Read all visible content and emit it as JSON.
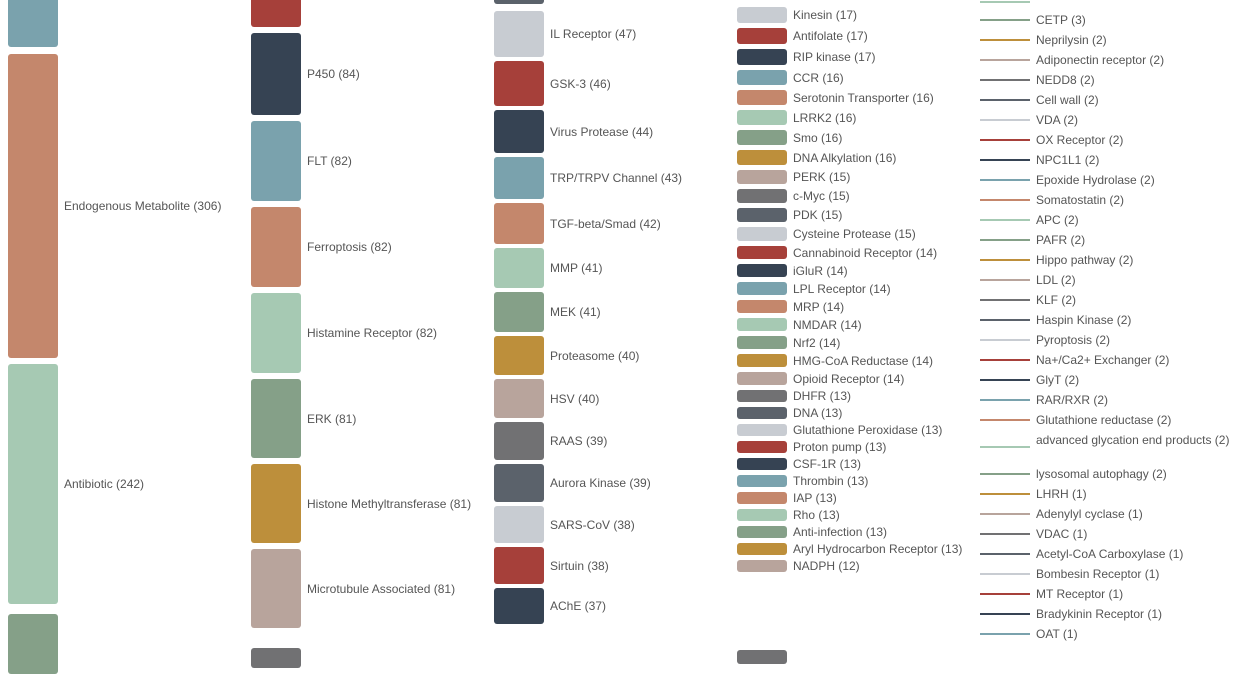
{
  "chart_data": {
    "type": "treemap-legend",
    "colors": [
      "#a6403a",
      "#364353",
      "#7aa2ad",
      "#c4876c",
      "#a6c9b3",
      "#85a088",
      "#bd8f3b",
      "#b8a49c",
      "#717173",
      "#5b626b",
      "#c8ccd2"
    ],
    "columns": [
      {
        "items": [
          {
            "label": "Endogenous Metabolite (306)",
            "name": "Endogenous Metabolite",
            "value": 306,
            "color": "#c4876c"
          },
          {
            "label": "Antibiotic (242)",
            "name": "Antibiotic",
            "value": 242,
            "color": "#a6c9b3"
          }
        ]
      },
      {
        "items": [
          {
            "label": "P450 (84)",
            "name": "P450",
            "value": 84,
            "color": "#364353"
          },
          {
            "label": "FLT (82)",
            "name": "FLT",
            "value": 82,
            "color": "#7aa2ad"
          },
          {
            "label": "Ferroptosis (82)",
            "name": "Ferroptosis",
            "value": 82,
            "color": "#c4876c"
          },
          {
            "label": "Histamine Receptor (82)",
            "name": "Histamine Receptor",
            "value": 82,
            "color": "#a6c9b3"
          },
          {
            "label": "ERK (81)",
            "name": "ERK",
            "value": 81,
            "color": "#85a088"
          },
          {
            "label": "Histone Methyltransferase (81)",
            "name": "Histone Methyltransferase",
            "value": 81,
            "color": "#bd8f3b"
          },
          {
            "label": "Microtubule Associated (81)",
            "name": "Microtubule Associated",
            "value": 81,
            "color": "#b8a49c"
          }
        ]
      },
      {
        "items": [
          {
            "label": "IL Receptor (47)",
            "name": "IL Receptor",
            "value": 47,
            "color": "#c8ccd2"
          },
          {
            "label": "GSK-3 (46)",
            "name": "GSK-3",
            "value": 46,
            "color": "#a6403a"
          },
          {
            "label": "Virus Protease (44)",
            "name": "Virus Protease",
            "value": 44,
            "color": "#364353"
          },
          {
            "label": "TRP/TRPV Channel (43)",
            "name": "TRP/TRPV Channel",
            "value": 43,
            "color": "#7aa2ad"
          },
          {
            "label": "TGF-beta/Smad (42)",
            "name": "TGF-beta/Smad",
            "value": 42,
            "color": "#c4876c"
          },
          {
            "label": "MMP (41)",
            "name": "MMP",
            "value": 41,
            "color": "#a6c9b3"
          },
          {
            "label": "MEK (41)",
            "name": "MEK",
            "value": 41,
            "color": "#85a088"
          },
          {
            "label": "Proteasome (40)",
            "name": "Proteasome",
            "value": 40,
            "color": "#bd8f3b"
          },
          {
            "label": "HSV (40)",
            "name": "HSV",
            "value": 40,
            "color": "#b8a49c"
          },
          {
            "label": "RAAS (39)",
            "name": "RAAS",
            "value": 39,
            "color": "#717173"
          },
          {
            "label": "Aurora Kinase (39)",
            "name": "Aurora Kinase",
            "value": 39,
            "color": "#5b626b"
          },
          {
            "label": "SARS-CoV (38)",
            "name": "SARS-CoV",
            "value": 38,
            "color": "#c8ccd2"
          },
          {
            "label": "Sirtuin (38)",
            "name": "Sirtuin",
            "value": 38,
            "color": "#a6403a"
          },
          {
            "label": "AChE (37)",
            "name": "AChE",
            "value": 37,
            "color": "#364353"
          }
        ]
      },
      {
        "items": [
          {
            "label": "Kinesin (17)",
            "name": "Kinesin",
            "value": 17,
            "color": "#c8ccd2"
          },
          {
            "label": "Antifolate (17)",
            "name": "Antifolate",
            "value": 17,
            "color": "#a6403a"
          },
          {
            "label": "RIP kinase (17)",
            "name": "RIP kinase",
            "value": 17,
            "color": "#364353"
          },
          {
            "label": "CCR (16)",
            "name": "CCR",
            "value": 16,
            "color": "#7aa2ad"
          },
          {
            "label": "Serotonin Transporter (16)",
            "name": "Serotonin Transporter",
            "value": 16,
            "color": "#c4876c"
          },
          {
            "label": "LRRK2 (16)",
            "name": "LRRK2",
            "value": 16,
            "color": "#a6c9b3"
          },
          {
            "label": "Smo (16)",
            "name": "Smo",
            "value": 16,
            "color": "#85a088"
          },
          {
            "label": "DNA Alkylation (16)",
            "name": "DNA Alkylation",
            "value": 16,
            "color": "#bd8f3b"
          },
          {
            "label": "PERK (15)",
            "name": "PERK",
            "value": 15,
            "color": "#b8a49c"
          },
          {
            "label": "c-Myc (15)",
            "name": "c-Myc",
            "value": 15,
            "color": "#717173"
          },
          {
            "label": "PDK (15)",
            "name": "PDK",
            "value": 15,
            "color": "#5b626b"
          },
          {
            "label": "Cysteine Protease (15)",
            "name": "Cysteine Protease",
            "value": 15,
            "color": "#c8ccd2"
          },
          {
            "label": "Cannabinoid Receptor (14)",
            "name": "Cannabinoid Receptor",
            "value": 14,
            "color": "#a6403a"
          },
          {
            "label": "iGluR (14)",
            "name": "iGluR",
            "value": 14,
            "color": "#364353"
          },
          {
            "label": "LPL Receptor (14)",
            "name": "LPL Receptor",
            "value": 14,
            "color": "#7aa2ad"
          },
          {
            "label": "MRP (14)",
            "name": "MRP",
            "value": 14,
            "color": "#c4876c"
          },
          {
            "label": "NMDAR (14)",
            "name": "NMDAR",
            "value": 14,
            "color": "#a6c9b3"
          },
          {
            "label": "Nrf2 (14)",
            "name": "Nrf2",
            "value": 14,
            "color": "#85a088"
          },
          {
            "label": "HMG-CoA Reductase (14)",
            "name": "HMG-CoA Reductase",
            "value": 14,
            "color": "#bd8f3b"
          },
          {
            "label": "Opioid Receptor (14)",
            "name": "Opioid Receptor",
            "value": 14,
            "color": "#b8a49c"
          },
          {
            "label": "DHFR (13)",
            "name": "DHFR",
            "value": 13,
            "color": "#717173"
          },
          {
            "label": "DNA (13)",
            "name": "DNA",
            "value": 13,
            "color": "#5b626b"
          },
          {
            "label": "Glutathione Peroxidase (13)",
            "name": "Glutathione Peroxidase",
            "value": 13,
            "color": "#c8ccd2"
          },
          {
            "label": "Proton pump (13)",
            "name": "Proton pump",
            "value": 13,
            "color": "#a6403a"
          },
          {
            "label": "CSF-1R (13)",
            "name": "CSF-1R",
            "value": 13,
            "color": "#364353"
          },
          {
            "label": "Thrombin (13)",
            "name": "Thrombin",
            "value": 13,
            "color": "#7aa2ad"
          },
          {
            "label": "IAP (13)",
            "name": "IAP",
            "value": 13,
            "color": "#c4876c"
          },
          {
            "label": "Rho (13)",
            "name": "Rho",
            "value": 13,
            "color": "#a6c9b3"
          },
          {
            "label": "Anti-infection (13)",
            "name": "Anti-infection",
            "value": 13,
            "color": "#85a088"
          },
          {
            "label": "Aryl Hydrocarbon Receptor (13)",
            "name": "Aryl Hydrocarbon Receptor",
            "value": 13,
            "color": "#bd8f3b"
          },
          {
            "label": "NADPH (12)",
            "name": "NADPH",
            "value": 12,
            "color": "#b8a49c"
          }
        ]
      },
      {
        "items": [
          {
            "label": "CETP (3)",
            "name": "CETP",
            "value": 3,
            "color": "#85a088"
          },
          {
            "label": "Neprilysin (2)",
            "name": "Neprilysin",
            "value": 2,
            "color": "#bd8f3b"
          },
          {
            "label": "Adiponectin receptor (2)",
            "name": "Adiponectin receptor",
            "value": 2,
            "color": "#b8a49c"
          },
          {
            "label": "NEDD8 (2)",
            "name": "NEDD8",
            "value": 2,
            "color": "#717173"
          },
          {
            "label": "Cell wall (2)",
            "name": "Cell wall",
            "value": 2,
            "color": "#5b626b"
          },
          {
            "label": "VDA (2)",
            "name": "VDA",
            "value": 2,
            "color": "#c8ccd2"
          },
          {
            "label": "OX Receptor (2)",
            "name": "OX Receptor",
            "value": 2,
            "color": "#a6403a"
          },
          {
            "label": "NPC1L1 (2)",
            "name": "NPC1L1",
            "value": 2,
            "color": "#364353"
          },
          {
            "label": "Epoxide Hydrolase (2)",
            "name": "Epoxide Hydrolase",
            "value": 2,
            "color": "#7aa2ad"
          },
          {
            "label": "Somatostatin (2)",
            "name": "Somatostatin",
            "value": 2,
            "color": "#c4876c"
          },
          {
            "label": "APC (2)",
            "name": "APC",
            "value": 2,
            "color": "#a6c9b3"
          },
          {
            "label": "PAFR (2)",
            "name": "PAFR",
            "value": 2,
            "color": "#85a088"
          },
          {
            "label": "Hippo pathway (2)",
            "name": "Hippo pathway",
            "value": 2,
            "color": "#bd8f3b"
          },
          {
            "label": "LDL (2)",
            "name": "LDL",
            "value": 2,
            "color": "#b8a49c"
          },
          {
            "label": "KLF (2)",
            "name": "KLF",
            "value": 2,
            "color": "#717173"
          },
          {
            "label": "Haspin Kinase (2)",
            "name": "Haspin Kinase",
            "value": 2,
            "color": "#5b626b"
          },
          {
            "label": "Pyroptosis (2)",
            "name": "Pyroptosis",
            "value": 2,
            "color": "#c8ccd2"
          },
          {
            "label": "Na+/Ca2+ Exchanger (2)",
            "name": "Na+/Ca2+ Exchanger",
            "value": 2,
            "color": "#a6403a"
          },
          {
            "label": "GlyT (2)",
            "name": "GlyT",
            "value": 2,
            "color": "#364353"
          },
          {
            "label": "RAR/RXR  (2)",
            "name": "RAR/RXR",
            "value": 2,
            "color": "#7aa2ad"
          },
          {
            "label": "Glutathione reductase (2)",
            "name": "Glutathione reductase",
            "value": 2,
            "color": "#c4876c"
          },
          {
            "label": "advanced glycation end products (2)",
            "name": "advanced glycation end products",
            "value": 2,
            "color": "#a6c9b3"
          },
          {
            "label": "lysosomal autophagy (2)",
            "name": "lysosomal autophagy",
            "value": 2,
            "color": "#85a088"
          },
          {
            "label": "LHRH (1)",
            "name": "LHRH",
            "value": 1,
            "color": "#bd8f3b"
          },
          {
            "label": "Adenylyl cyclase (1)",
            "name": "Adenylyl cyclase",
            "value": 1,
            "color": "#b8a49c"
          },
          {
            "label": "VDAC (1)",
            "name": "VDAC",
            "value": 1,
            "color": "#717173"
          },
          {
            "label": "Acetyl-CoA Carboxylase (1)",
            "name": "Acetyl-CoA Carboxylase",
            "value": 1,
            "color": "#5b626b"
          },
          {
            "label": "Bombesin Receptor (1)",
            "name": "Bombesin Receptor",
            "value": 1,
            "color": "#c8ccd2"
          },
          {
            "label": "MT Receptor (1)",
            "name": "MT Receptor",
            "value": 1,
            "color": "#a6403a"
          },
          {
            "label": "Bradykinin Receptor (1)",
            "name": "Bradykinin Receptor",
            "value": 1,
            "color": "#364353"
          },
          {
            "label": "OAT (1)",
            "name": "OAT",
            "value": 1,
            "color": "#7aa2ad"
          }
        ]
      }
    ]
  }
}
